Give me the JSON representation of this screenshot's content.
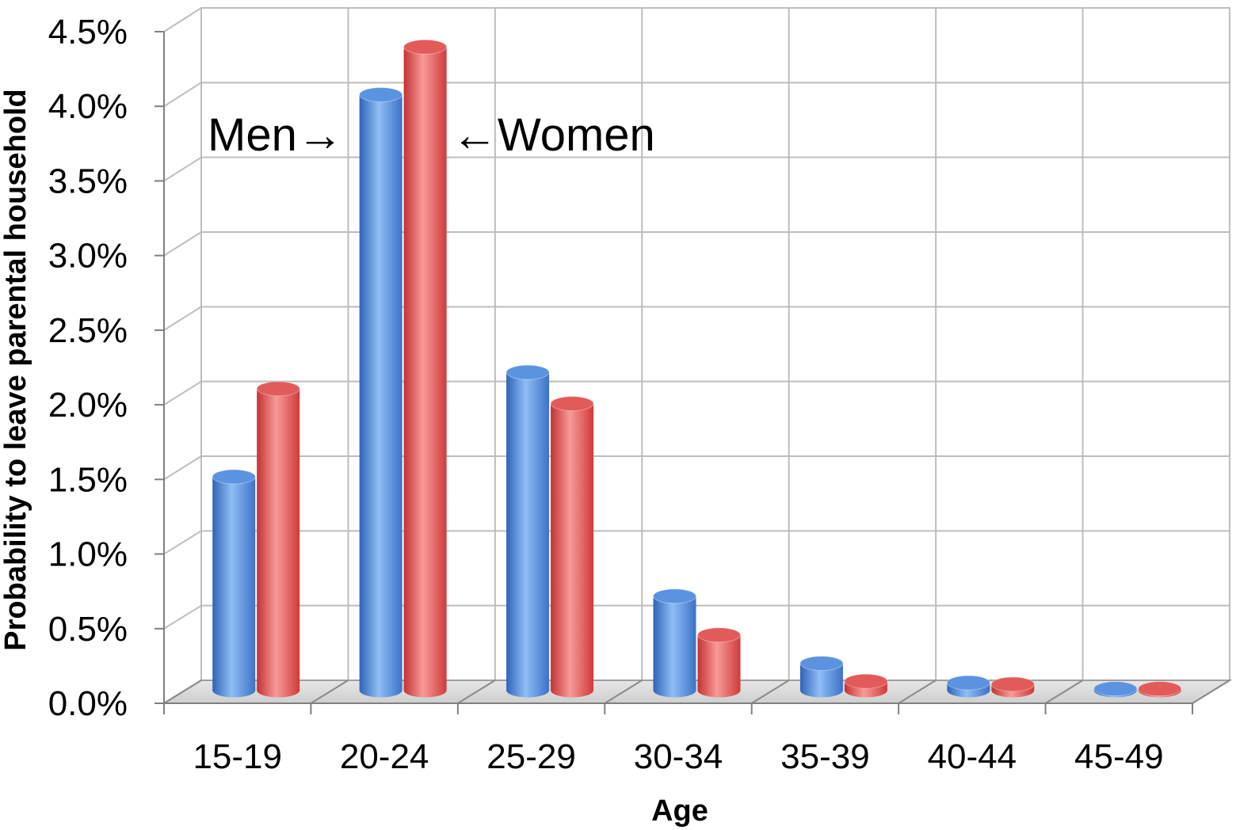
{
  "chart_data": {
    "type": "bar",
    "title": "",
    "xlabel": "Age",
    "ylabel": "Probability to leave parental household",
    "categories": [
      "15-19",
      "20-24",
      "25-29",
      "30-34",
      "35-39",
      "40-44",
      "45-49"
    ],
    "series": [
      {
        "name": "Men",
        "color": "#4f86d8",
        "values": [
          1.43,
          3.99,
          2.13,
          0.63,
          0.18,
          0.05,
          0.01
        ]
      },
      {
        "name": "Women",
        "color": "#e0504f",
        "values": [
          2.02,
          4.31,
          1.92,
          0.37,
          0.06,
          0.04,
          0.01
        ]
      }
    ],
    "ylim": [
      0,
      4.5
    ],
    "y_ticks": [
      0,
      0.5,
      1.0,
      1.5,
      2.0,
      2.5,
      3.0,
      3.5,
      4.0,
      4.5
    ],
    "y_tick_labels": [
      "0.0%",
      "0.5%",
      "1.0%",
      "1.5%",
      "2.0%",
      "2.5%",
      "3.0%",
      "3.5%",
      "4.0%",
      "4.5%"
    ],
    "grid": true,
    "legend": "none",
    "annotations": [
      {
        "text": "Men→",
        "series": "Men"
      },
      {
        "text": "←Women",
        "series": "Women"
      }
    ]
  }
}
